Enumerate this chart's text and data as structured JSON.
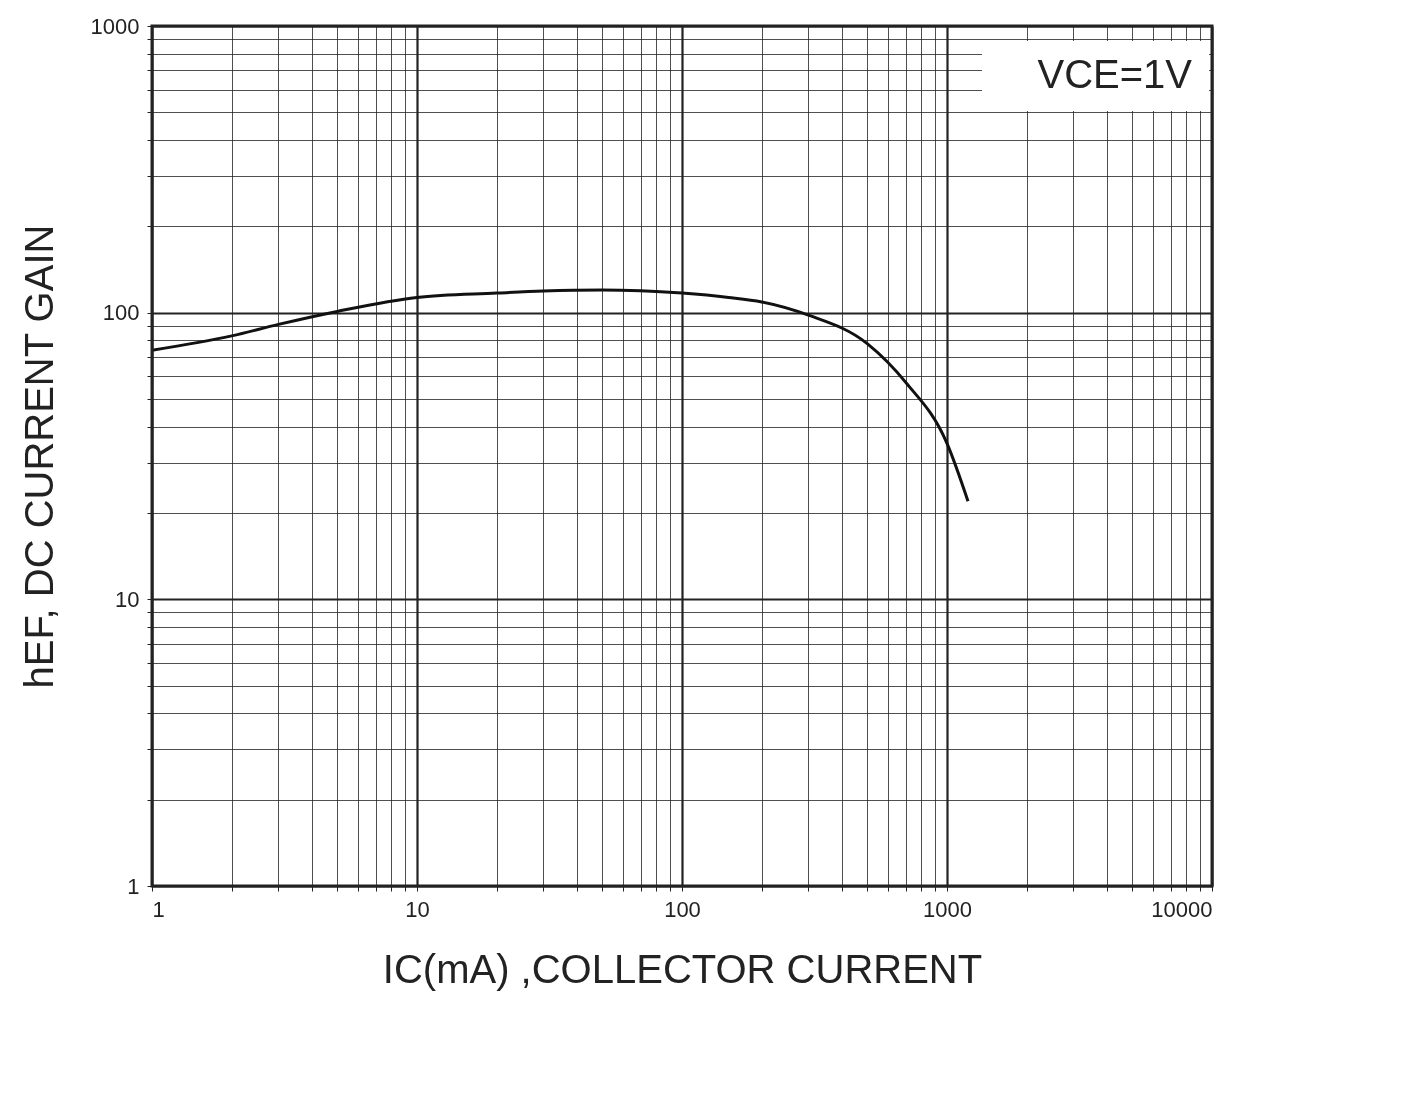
{
  "chart_data": {
    "type": "line",
    "xlabel": "IC(mA) ,COLLECTOR CURRENT",
    "ylabel": "hEF, DC CURRENT GAIN",
    "annotations": [
      "VCE=1V"
    ],
    "x": [
      1,
      2,
      3,
      5,
      10,
      20,
      30,
      50,
      100,
      150,
      200,
      300,
      500,
      700,
      1000,
      1200
    ],
    "series": [
      {
        "color": "#111111",
        "values": [
          74,
          83,
          91,
          101,
          113,
          117,
          119,
          120,
          117,
          113,
          109,
          98,
          78,
          57,
          35,
          22
        ]
      }
    ],
    "log": "xy",
    "xlim": [
      1,
      10000
    ],
    "ylim": [
      1,
      1000
    ],
    "xticks": [
      1,
      {
        "value": 2,
        "label": null
      },
      {
        "value": 3,
        "label": null
      },
      {
        "value": 4,
        "label": null
      },
      {
        "value": 5,
        "label": null
      },
      {
        "value": 6,
        "label": null
      },
      {
        "value": 7,
        "label": null
      },
      {
        "value": 8,
        "label": null
      },
      {
        "value": 9,
        "label": null
      },
      10,
      {
        "value": 20,
        "label": null
      },
      {
        "value": 30,
        "label": null
      },
      {
        "value": 40,
        "label": null
      },
      {
        "value": 50,
        "label": null
      },
      {
        "value": 60,
        "label": null
      },
      {
        "value": 70,
        "label": null
      },
      {
        "value": 80,
        "label": null
      },
      {
        "value": 90,
        "label": null
      },
      100,
      {
        "value": 200,
        "label": null
      },
      {
        "value": 300,
        "label": null
      },
      {
        "value": 400,
        "label": null
      },
      {
        "value": 500,
        "label": null
      },
      {
        "value": 600,
        "label": null
      },
      {
        "value": 700,
        "label": null
      },
      {
        "value": 800,
        "label": null
      },
      {
        "value": 900,
        "label": null
      },
      1000,
      {
        "value": 2000,
        "label": null
      },
      {
        "value": 3000,
        "label": null
      },
      {
        "value": 4000,
        "label": null
      },
      {
        "value": 5000,
        "label": null
      },
      {
        "value": 6000,
        "label": null
      },
      {
        "value": 7000,
        "label": null
      },
      {
        "value": 8000,
        "label": null
      },
      {
        "value": 9000,
        "label": null
      },
      10000
    ],
    "yticks": [
      1,
      {
        "value": 2,
        "label": null
      },
      {
        "value": 3,
        "label": null
      },
      {
        "value": 4,
        "label": null
      },
      {
        "value": 5,
        "label": null
      },
      {
        "value": 6,
        "label": null
      },
      {
        "value": 7,
        "label": null
      },
      {
        "value": 8,
        "label": null
      },
      {
        "value": 9,
        "label": null
      },
      10,
      {
        "value": 20,
        "label": null
      },
      {
        "value": 30,
        "label": null
      },
      {
        "value": 40,
        "label": null
      },
      {
        "value": 50,
        "label": null
      },
      {
        "value": 60,
        "label": null
      },
      {
        "value": 70,
        "label": null
      },
      {
        "value": 80,
        "label": null
      },
      {
        "value": 90,
        "label": null
      },
      100,
      {
        "value": 200,
        "label": null
      },
      {
        "value": 300,
        "label": null
      },
      {
        "value": 400,
        "label": null
      },
      {
        "value": 500,
        "label": null
      },
      {
        "value": 600,
        "label": null
      },
      {
        "value": 700,
        "label": null
      },
      {
        "value": 800,
        "label": null
      },
      {
        "value": 900,
        "label": null
      },
      1000
    ],
    "grid": true,
    "marker": "none",
    "line_style": "solid"
  }
}
